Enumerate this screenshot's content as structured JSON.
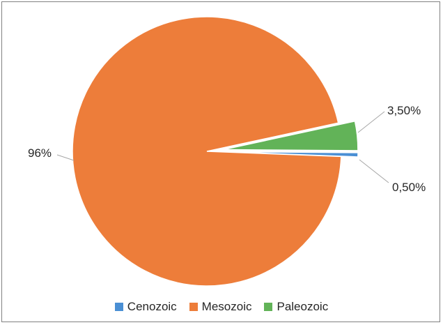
{
  "chart_data": {
    "type": "pie",
    "categories": [
      "Cenozoic",
      "Mesozoic",
      "Paleozoic"
    ],
    "values": [
      0.5,
      96,
      3.5
    ],
    "data_labels": [
      "0,50%",
      "96%",
      "3,50%"
    ],
    "colors": [
      "#4a8fd4",
      "#ed7d3a",
      "#62b358"
    ],
    "exploded": [
      true,
      false,
      true
    ],
    "legend_position": "bottom",
    "title": ""
  }
}
